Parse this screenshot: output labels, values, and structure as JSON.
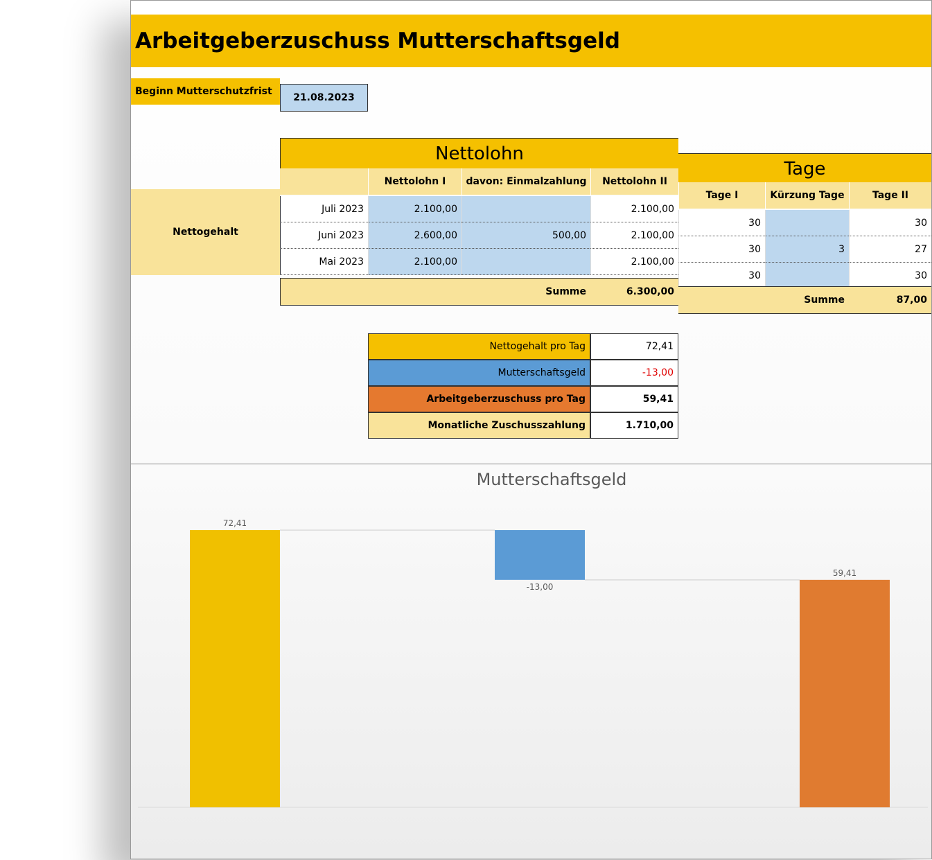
{
  "header": {
    "title": "Arbeitgeberzuschuss Mutterschaftsgeld"
  },
  "start": {
    "label": "Beginn Mutterschutzfrist",
    "value": "21.08.2023"
  },
  "table": {
    "group_headers": [
      "Nettolohn",
      "Tage"
    ],
    "columns": [
      "Nettolohn I",
      "davon: Einmalzahlung",
      "Nettolohn II",
      "Tage I",
      "Kürzung Tage",
      "Tage II"
    ],
    "row_label": "Nettogehalt",
    "rows": [
      [
        "Juli 2023",
        "2.100,00",
        null,
        "2.100,00",
        "30",
        null,
        "30"
      ],
      [
        "Juni 2023",
        "2.600,00",
        "500,00",
        "2.100,00",
        "30",
        "3",
        "27"
      ],
      [
        "Mai 2023",
        "2.100,00",
        null,
        "2.100,00",
        "30",
        null,
        "30"
      ]
    ],
    "sum_row": {
      "nettolohn_label": "Summe",
      "nettolohn_total": "6.300,00",
      "tage_label": "Summe",
      "tage_total": "87,00"
    }
  },
  "summary": [
    {
      "label": "Nettogehalt pro Tag",
      "value": "72,41",
      "color": "#f5c000"
    },
    {
      "label": "Mutterschaftsgeld",
      "value": "-13,00",
      "color": "#5b9bd5",
      "value_color": "#e00000"
    },
    {
      "label": "Arbeitgeberzuschuss pro Tag",
      "value": "59,41",
      "color": "#e5792f"
    },
    {
      "label": "Monatliche Zuschusszahlung",
      "value": "1.710,00",
      "color": "#f9e39a"
    }
  ],
  "chart_data": {
    "type": "waterfall",
    "title": "Mutterschaftsgeld",
    "values": [
      72.41,
      -13,
      59.41
    ],
    "value_labels": [
      "72,41",
      "-13,00",
      "59,41"
    ],
    "colors": [
      "#f0c000",
      "#5b9bd5",
      "#e07b30"
    ],
    "last_is_total": true
  }
}
